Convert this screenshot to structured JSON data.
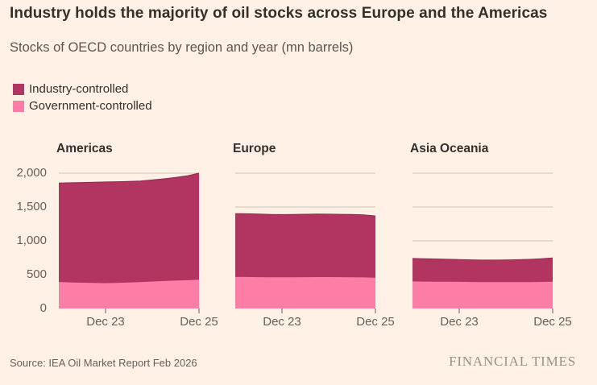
{
  "header": {
    "title": "Industry holds the majority of oil stocks across Europe and the Americas",
    "subtitle": "Stocks of OECD countries by region and year (mn barrels)"
  },
  "legend": {
    "items": [
      {
        "label": "Industry-controlled",
        "color": "#b13461"
      },
      {
        "label": "Government-controlled",
        "color": "#fc7ea7"
      }
    ]
  },
  "footer": {
    "source": "Source: IEA Oil Market Report Feb 2026",
    "logo": "FINANCIAL TIMES"
  },
  "colors": {
    "background": "#fff1e5",
    "industry": "#b13461",
    "industry_line": "#92294f",
    "government": "#fc7ea7",
    "gridline": "#ccc1b7",
    "tick": "#66605c",
    "text_dark": "#33302e",
    "text_muted": "#66605c"
  },
  "chart_data": {
    "type": "area",
    "stacked": true,
    "title": "Industry holds the majority of oil stocks across Europe and the Americas",
    "subtitle": "Stocks of OECD countries by region and year (mn barrels)",
    "unit": "mn barrels",
    "grid": "horizontal",
    "legend_position": "top-left",
    "x_unit_years_from_dec_22": true,
    "xlim": [
      0,
      3
    ],
    "xticks": [
      1,
      3
    ],
    "x_tick_labels": [
      "Dec 23",
      "Dec 25"
    ],
    "ylim": [
      0,
      2000
    ],
    "yticks": [
      0,
      500,
      1000,
      1500,
      2000
    ],
    "ytick_labels": [
      "0",
      "500",
      "1,000",
      "1,500",
      "2,000"
    ],
    "stack_order": [
      "Government-controlled",
      "Industry-controlled"
    ],
    "x": [
      0,
      0.25,
      0.5,
      0.75,
      1,
      1.25,
      1.5,
      1.75,
      2,
      2.25,
      2.5,
      2.75,
      3
    ],
    "panels": [
      {
        "title": "Americas",
        "series": [
          {
            "name": "Government-controlled",
            "values": [
              392,
              386,
              381,
              377,
              375,
              379,
              384,
              391,
              399,
              406,
              412,
              418,
              425
            ]
          },
          {
            "name": "Industry-controlled",
            "values": [
              1463,
              1472,
              1481,
              1489,
              1495,
              1495,
              1494,
              1493,
              1501,
              1511,
              1525,
              1544,
              1575
            ]
          }
        ],
        "totals": [
          1855,
          1858,
          1862,
          1866,
          1870,
          1874,
          1878,
          1884,
          1900,
          1917,
          1937,
          1962,
          2000
        ]
      },
      {
        "title": "Europe",
        "series": [
          {
            "name": "Government-controlled",
            "values": [
              466,
              465,
              463,
              462,
              461,
              462,
              463,
              464,
              464,
              463,
              462,
              459,
              455
            ]
          },
          {
            "name": "Industry-controlled",
            "values": [
              936,
              935,
              933,
              929,
              927,
              928,
              930,
              932,
              930,
              929,
              928,
              924,
              913
            ]
          }
        ],
        "totals": [
          1402,
          1400,
          1396,
          1391,
          1388,
          1390,
          1393,
          1396,
          1394,
          1392,
          1390,
          1383,
          1368
        ]
      },
      {
        "title": "Asia Oceania",
        "series": [
          {
            "name": "Government-controlled",
            "values": [
              400,
              398,
              397,
              395,
              394,
              392,
              391,
              390,
              390,
              390,
              391,
              393,
              396
            ]
          },
          {
            "name": "Industry-controlled",
            "values": [
              339,
              338,
              335,
              332,
              329,
              327,
              325,
              325,
              327,
              331,
              335,
              341,
              352
            ]
          }
        ],
        "totals": [
          739,
          736,
          732,
          727,
          723,
          719,
          716,
          715,
          717,
          721,
          726,
          734,
          748
        ]
      }
    ]
  }
}
